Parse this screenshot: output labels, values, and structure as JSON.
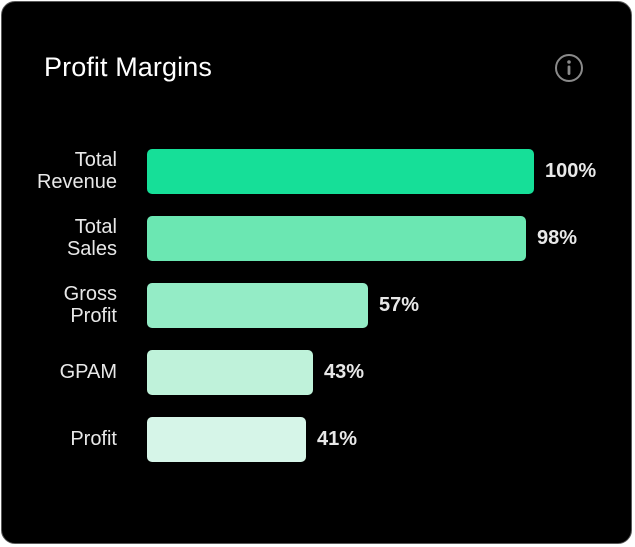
{
  "header": {
    "title": "Profit Margins",
    "info_icon": "info-icon"
  },
  "chart_data": {
    "type": "bar",
    "orientation": "horizontal",
    "title": "Profit Margins",
    "categories": [
      "Total\nRevenue",
      "Total\nSales",
      "Gross\nProfit",
      "GPAM",
      "Profit"
    ],
    "values": [
      100,
      98,
      57,
      43,
      41
    ],
    "value_labels": [
      "100%",
      "98%",
      "57%",
      "43%",
      "41%"
    ],
    "bar_colors": [
      "#16df98",
      "#6be7b2",
      "#94ecc6",
      "#bff2da",
      "#d6f5e8"
    ],
    "xlim": [
      0,
      100
    ],
    "grid": false,
    "legend": "none"
  },
  "colors": {
    "background": "#000000",
    "border": "#5a5a5a",
    "text": "#e8e8e8"
  }
}
